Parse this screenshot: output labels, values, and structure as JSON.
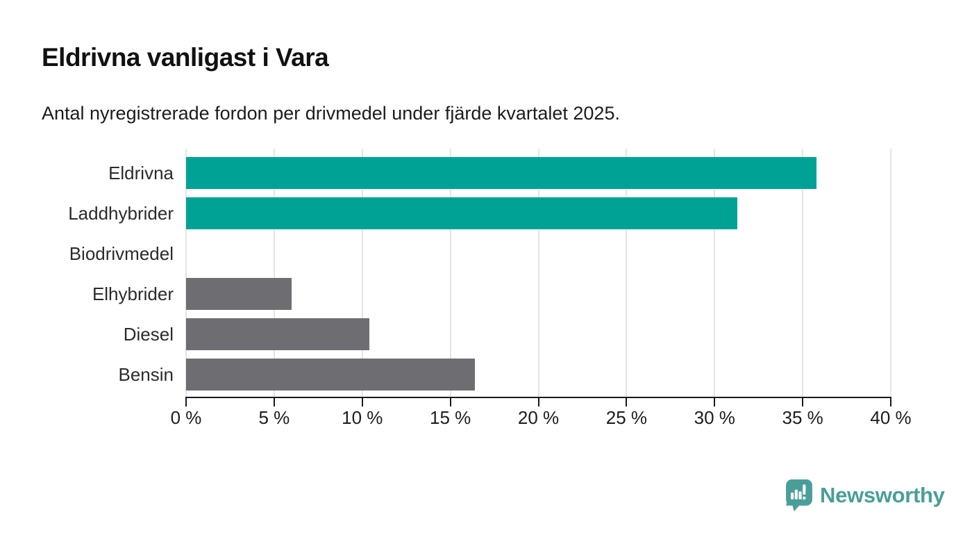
{
  "header": {
    "title": "Eldrivna vanligast i Vara",
    "subtitle": "Antal nyregistrerade fordon per drivmedel under fjärde kvartalet 2025."
  },
  "chart_data": {
    "type": "bar",
    "orientation": "horizontal",
    "title": "Eldrivna vanligast i Vara",
    "subtitle": "Antal nyregistrerade fordon per drivmedel under fjärde kvartalet 2025.",
    "categories": [
      "Eldrivna",
      "Laddhybrider",
      "Biodrivmedel",
      "Elhybrider",
      "Diesel",
      "Bensin"
    ],
    "values": [
      35.8,
      31.3,
      0,
      6.0,
      10.4,
      16.4
    ],
    "unit": "%",
    "xlim": [
      0,
      40
    ],
    "xticks": [
      0,
      5,
      10,
      15,
      20,
      25,
      30,
      35,
      40
    ],
    "xtick_labels": [
      "0 %",
      "5 %",
      "10 %",
      "15 %",
      "20 %",
      "25 %",
      "30 %",
      "35 %",
      "40 %"
    ],
    "grid": true,
    "legend": false,
    "bar_colors": [
      "#00a296",
      "#00a296",
      "#6e6e72",
      "#6e6e72",
      "#6e6e72",
      "#6e6e72"
    ],
    "highlight_color": "#00a296",
    "default_color": "#6e6e72",
    "axis_color": "#1a1a1a",
    "gridline_color": "#e4e4e4"
  },
  "branding": {
    "logo_text": "Newsworthy",
    "logo_color": "#4a9e99",
    "logo_icon": "bar-chart-speech-bubble-icon"
  }
}
